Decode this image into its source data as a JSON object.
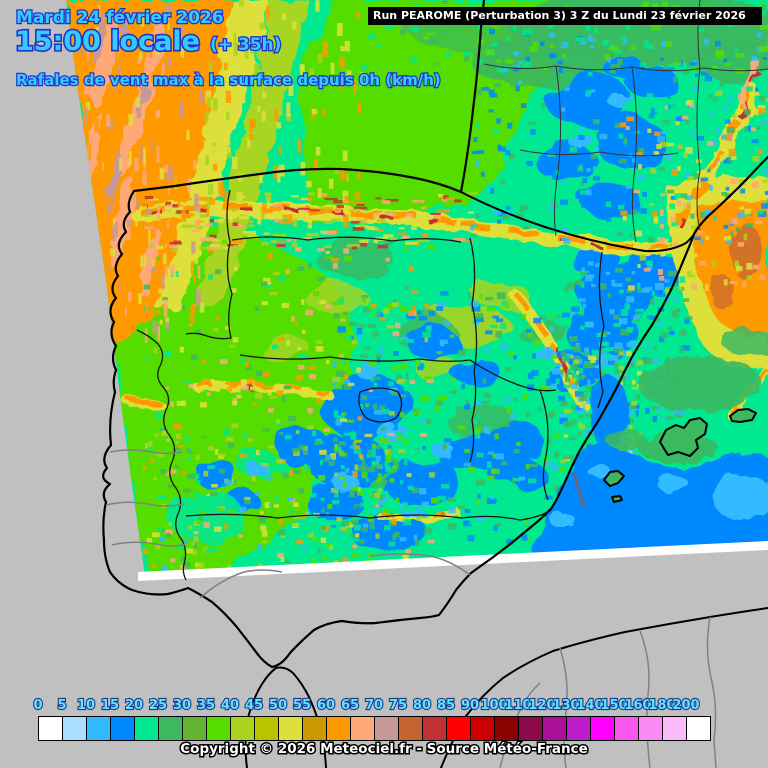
{
  "header": {
    "date": "Mardi 24 février 2026",
    "time": "15:00 locale",
    "offset": "(+ 35h)",
    "parameter": "Rafales de vent max à la surface depuis 0h (km/h)"
  },
  "run_info": {
    "label": "Run PEAROME (Perturbation 3) 3 Z du Lundi 23 février 2026"
  },
  "copyright": "Copyright © 2026 Meteociel.fr - Source Météo-France",
  "colors": {
    "header_text_fill": "#33ccff",
    "header_text_outline": "#2233cc",
    "outside_domain_gray": "#c0c0c0",
    "run_bar_bg": "#000000",
    "run_bar_text": "#ffffff",
    "legend_label_fill": "#66e0ff",
    "legend_label_outline": "#1a3a8c",
    "coastline": "#000000",
    "secondary_border": "#808080"
  },
  "legend": {
    "values": [
      0,
      5,
      10,
      15,
      20,
      25,
      30,
      35,
      40,
      45,
      50,
      55,
      60,
      65,
      70,
      75,
      80,
      85,
      90,
      100,
      110,
      120,
      130,
      140,
      150,
      160,
      180,
      200
    ],
    "colors": [
      "#ffffff",
      "#aaddff",
      "#33bbff",
      "#0088ff",
      "#00e890",
      "#3cb860",
      "#64b432",
      "#55dd00",
      "#a8d420",
      "#b8c400",
      "#dde03a",
      "#cc9900",
      "#ff9900",
      "#ffa878",
      "#c89898",
      "#c46432",
      "#c03232",
      "#ff0000",
      "#cc0000",
      "#8b0000",
      "#8b0b4a",
      "#a81098",
      "#bb1ec8",
      "#ff00ff",
      "#f858f0",
      "#fa8af5",
      "#fcbcfa",
      "#ffffff"
    ]
  }
}
